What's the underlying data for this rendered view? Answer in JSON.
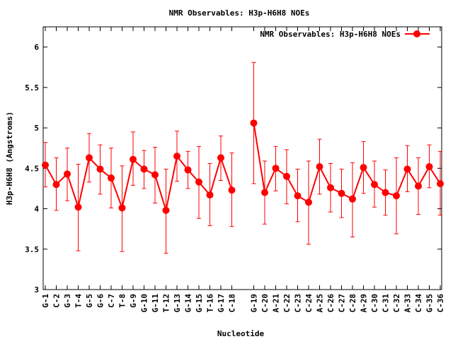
{
  "chart_data": {
    "type": "line",
    "title": "NMR Observables: H3p-H6H8 NOEs",
    "xlabel": "Nucleotide",
    "ylabel": "H3p-H6H8 (Angstroms)",
    "ylim": [
      3,
      6.25
    ],
    "yticks": [
      "3",
      "3.5",
      "4",
      "4.5",
      "5",
      "5.5",
      "6"
    ],
    "grid": false,
    "legend_position": "top-right",
    "color": "#ff0000",
    "series": [
      {
        "name": "NMR Observables: H3p-H6H8 NOEs",
        "segments": [
          {
            "labels": [
              "G-1",
              "C-2",
              "G-3",
              "T-4",
              "G-5",
              "G-6",
              "C-7",
              "T-8",
              "G-9",
              "G-10",
              "G-11",
              "T-12",
              "G-13",
              "G-14",
              "G-15",
              "T-16",
              "G-17",
              "C-18"
            ],
            "values": [
              4.54,
              4.3,
              4.43,
              4.02,
              4.63,
              4.49,
              4.38,
              4.01,
              4.61,
              4.49,
              4.42,
              3.98,
              4.65,
              4.48,
              4.33,
              4.17,
              4.63,
              4.23
            ],
            "err_low": [
              4.27,
              3.98,
              4.1,
              3.48,
              4.33,
              4.18,
              4.01,
              3.47,
              4.29,
              4.25,
              4.07,
              3.45,
              4.34,
              4.25,
              3.88,
              3.79,
              4.35,
              3.78
            ],
            "err_high": [
              4.82,
              4.63,
              4.75,
              4.55,
              4.93,
              4.79,
              4.75,
              4.53,
              4.95,
              4.72,
              4.76,
              4.49,
              4.96,
              4.71,
              4.77,
              4.56,
              4.9,
              4.69
            ]
          },
          {
            "labels": [
              "G-19",
              "C-20",
              "A-21",
              "C-22",
              "C-23",
              "C-24",
              "A-25",
              "C-26",
              "C-27",
              "C-28",
              "A-29",
              "C-30",
              "C-31",
              "C-32",
              "A-33",
              "C-34",
              "G-35",
              "C-36"
            ],
            "values": [
              5.06,
              4.2,
              4.5,
              4.4,
              4.16,
              4.08,
              4.52,
              4.26,
              4.19,
              4.12,
              4.51,
              4.3,
              4.2,
              4.16,
              4.49,
              4.28,
              4.52,
              4.31
            ],
            "err_low": [
              4.31,
              3.81,
              4.22,
              4.06,
              3.84,
              3.56,
              4.18,
              3.96,
              3.89,
              3.65,
              4.19,
              4.02,
              3.92,
              3.69,
              4.21,
              3.93,
              4.26,
              3.92
            ],
            "err_high": [
              5.81,
              4.59,
              4.77,
              4.73,
              4.49,
              4.59,
              4.86,
              4.56,
              4.49,
              4.57,
              4.83,
              4.59,
              4.48,
              4.63,
              4.78,
              4.63,
              4.79,
              4.71
            ]
          }
        ]
      }
    ]
  }
}
